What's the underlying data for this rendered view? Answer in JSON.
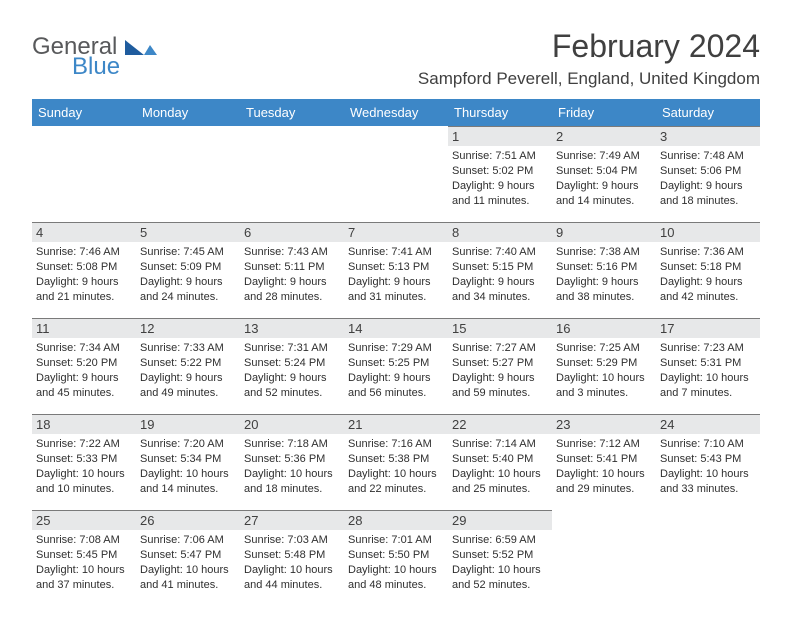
{
  "brand": {
    "word1": "General",
    "word2": "Blue",
    "color_general": "#58595b",
    "color_blue": "#3d87c7"
  },
  "header": {
    "month_title": "February 2024",
    "location": "Sampford Peverell, England, United Kingdom"
  },
  "weekdays": [
    "Sunday",
    "Monday",
    "Tuesday",
    "Wednesday",
    "Thursday",
    "Friday",
    "Saturday"
  ],
  "styles": {
    "header_bg": "#3d87c7",
    "date_bar_bg": "#e7e8e9",
    "date_bar_border": "#7a7a7a"
  },
  "weeks": [
    [
      {
        "date": "",
        "lines": []
      },
      {
        "date": "",
        "lines": []
      },
      {
        "date": "",
        "lines": []
      },
      {
        "date": "",
        "lines": []
      },
      {
        "date": "1",
        "lines": [
          "Sunrise: 7:51 AM",
          "Sunset: 5:02 PM",
          "Daylight: 9 hours",
          "and 11 minutes."
        ]
      },
      {
        "date": "2",
        "lines": [
          "Sunrise: 7:49 AM",
          "Sunset: 5:04 PM",
          "Daylight: 9 hours",
          "and 14 minutes."
        ]
      },
      {
        "date": "3",
        "lines": [
          "Sunrise: 7:48 AM",
          "Sunset: 5:06 PM",
          "Daylight: 9 hours",
          "and 18 minutes."
        ]
      }
    ],
    [
      {
        "date": "4",
        "lines": [
          "Sunrise: 7:46 AM",
          "Sunset: 5:08 PM",
          "Daylight: 9 hours",
          "and 21 minutes."
        ]
      },
      {
        "date": "5",
        "lines": [
          "Sunrise: 7:45 AM",
          "Sunset: 5:09 PM",
          "Daylight: 9 hours",
          "and 24 minutes."
        ]
      },
      {
        "date": "6",
        "lines": [
          "Sunrise: 7:43 AM",
          "Sunset: 5:11 PM",
          "Daylight: 9 hours",
          "and 28 minutes."
        ]
      },
      {
        "date": "7",
        "lines": [
          "Sunrise: 7:41 AM",
          "Sunset: 5:13 PM",
          "Daylight: 9 hours",
          "and 31 minutes."
        ]
      },
      {
        "date": "8",
        "lines": [
          "Sunrise: 7:40 AM",
          "Sunset: 5:15 PM",
          "Daylight: 9 hours",
          "and 34 minutes."
        ]
      },
      {
        "date": "9",
        "lines": [
          "Sunrise: 7:38 AM",
          "Sunset: 5:16 PM",
          "Daylight: 9 hours",
          "and 38 minutes."
        ]
      },
      {
        "date": "10",
        "lines": [
          "Sunrise: 7:36 AM",
          "Sunset: 5:18 PM",
          "Daylight: 9 hours",
          "and 42 minutes."
        ]
      }
    ],
    [
      {
        "date": "11",
        "lines": [
          "Sunrise: 7:34 AM",
          "Sunset: 5:20 PM",
          "Daylight: 9 hours",
          "and 45 minutes."
        ]
      },
      {
        "date": "12",
        "lines": [
          "Sunrise: 7:33 AM",
          "Sunset: 5:22 PM",
          "Daylight: 9 hours",
          "and 49 minutes."
        ]
      },
      {
        "date": "13",
        "lines": [
          "Sunrise: 7:31 AM",
          "Sunset: 5:24 PM",
          "Daylight: 9 hours",
          "and 52 minutes."
        ]
      },
      {
        "date": "14",
        "lines": [
          "Sunrise: 7:29 AM",
          "Sunset: 5:25 PM",
          "Daylight: 9 hours",
          "and 56 minutes."
        ]
      },
      {
        "date": "15",
        "lines": [
          "Sunrise: 7:27 AM",
          "Sunset: 5:27 PM",
          "Daylight: 9 hours",
          "and 59 minutes."
        ]
      },
      {
        "date": "16",
        "lines": [
          "Sunrise: 7:25 AM",
          "Sunset: 5:29 PM",
          "Daylight: 10 hours",
          "and 3 minutes."
        ]
      },
      {
        "date": "17",
        "lines": [
          "Sunrise: 7:23 AM",
          "Sunset: 5:31 PM",
          "Daylight: 10 hours",
          "and 7 minutes."
        ]
      }
    ],
    [
      {
        "date": "18",
        "lines": [
          "Sunrise: 7:22 AM",
          "Sunset: 5:33 PM",
          "Daylight: 10 hours",
          "and 10 minutes."
        ]
      },
      {
        "date": "19",
        "lines": [
          "Sunrise: 7:20 AM",
          "Sunset: 5:34 PM",
          "Daylight: 10 hours",
          "and 14 minutes."
        ]
      },
      {
        "date": "20",
        "lines": [
          "Sunrise: 7:18 AM",
          "Sunset: 5:36 PM",
          "Daylight: 10 hours",
          "and 18 minutes."
        ]
      },
      {
        "date": "21",
        "lines": [
          "Sunrise: 7:16 AM",
          "Sunset: 5:38 PM",
          "Daylight: 10 hours",
          "and 22 minutes."
        ]
      },
      {
        "date": "22",
        "lines": [
          "Sunrise: 7:14 AM",
          "Sunset: 5:40 PM",
          "Daylight: 10 hours",
          "and 25 minutes."
        ]
      },
      {
        "date": "23",
        "lines": [
          "Sunrise: 7:12 AM",
          "Sunset: 5:41 PM",
          "Daylight: 10 hours",
          "and 29 minutes."
        ]
      },
      {
        "date": "24",
        "lines": [
          "Sunrise: 7:10 AM",
          "Sunset: 5:43 PM",
          "Daylight: 10 hours",
          "and 33 minutes."
        ]
      }
    ],
    [
      {
        "date": "25",
        "lines": [
          "Sunrise: 7:08 AM",
          "Sunset: 5:45 PM",
          "Daylight: 10 hours",
          "and 37 minutes."
        ]
      },
      {
        "date": "26",
        "lines": [
          "Sunrise: 7:06 AM",
          "Sunset: 5:47 PM",
          "Daylight: 10 hours",
          "and 41 minutes."
        ]
      },
      {
        "date": "27",
        "lines": [
          "Sunrise: 7:03 AM",
          "Sunset: 5:48 PM",
          "Daylight: 10 hours",
          "and 44 minutes."
        ]
      },
      {
        "date": "28",
        "lines": [
          "Sunrise: 7:01 AM",
          "Sunset: 5:50 PM",
          "Daylight: 10 hours",
          "and 48 minutes."
        ]
      },
      {
        "date": "29",
        "lines": [
          "Sunrise: 6:59 AM",
          "Sunset: 5:52 PM",
          "Daylight: 10 hours",
          "and 52 minutes."
        ]
      },
      {
        "date": "",
        "lines": []
      },
      {
        "date": "",
        "lines": []
      }
    ]
  ]
}
